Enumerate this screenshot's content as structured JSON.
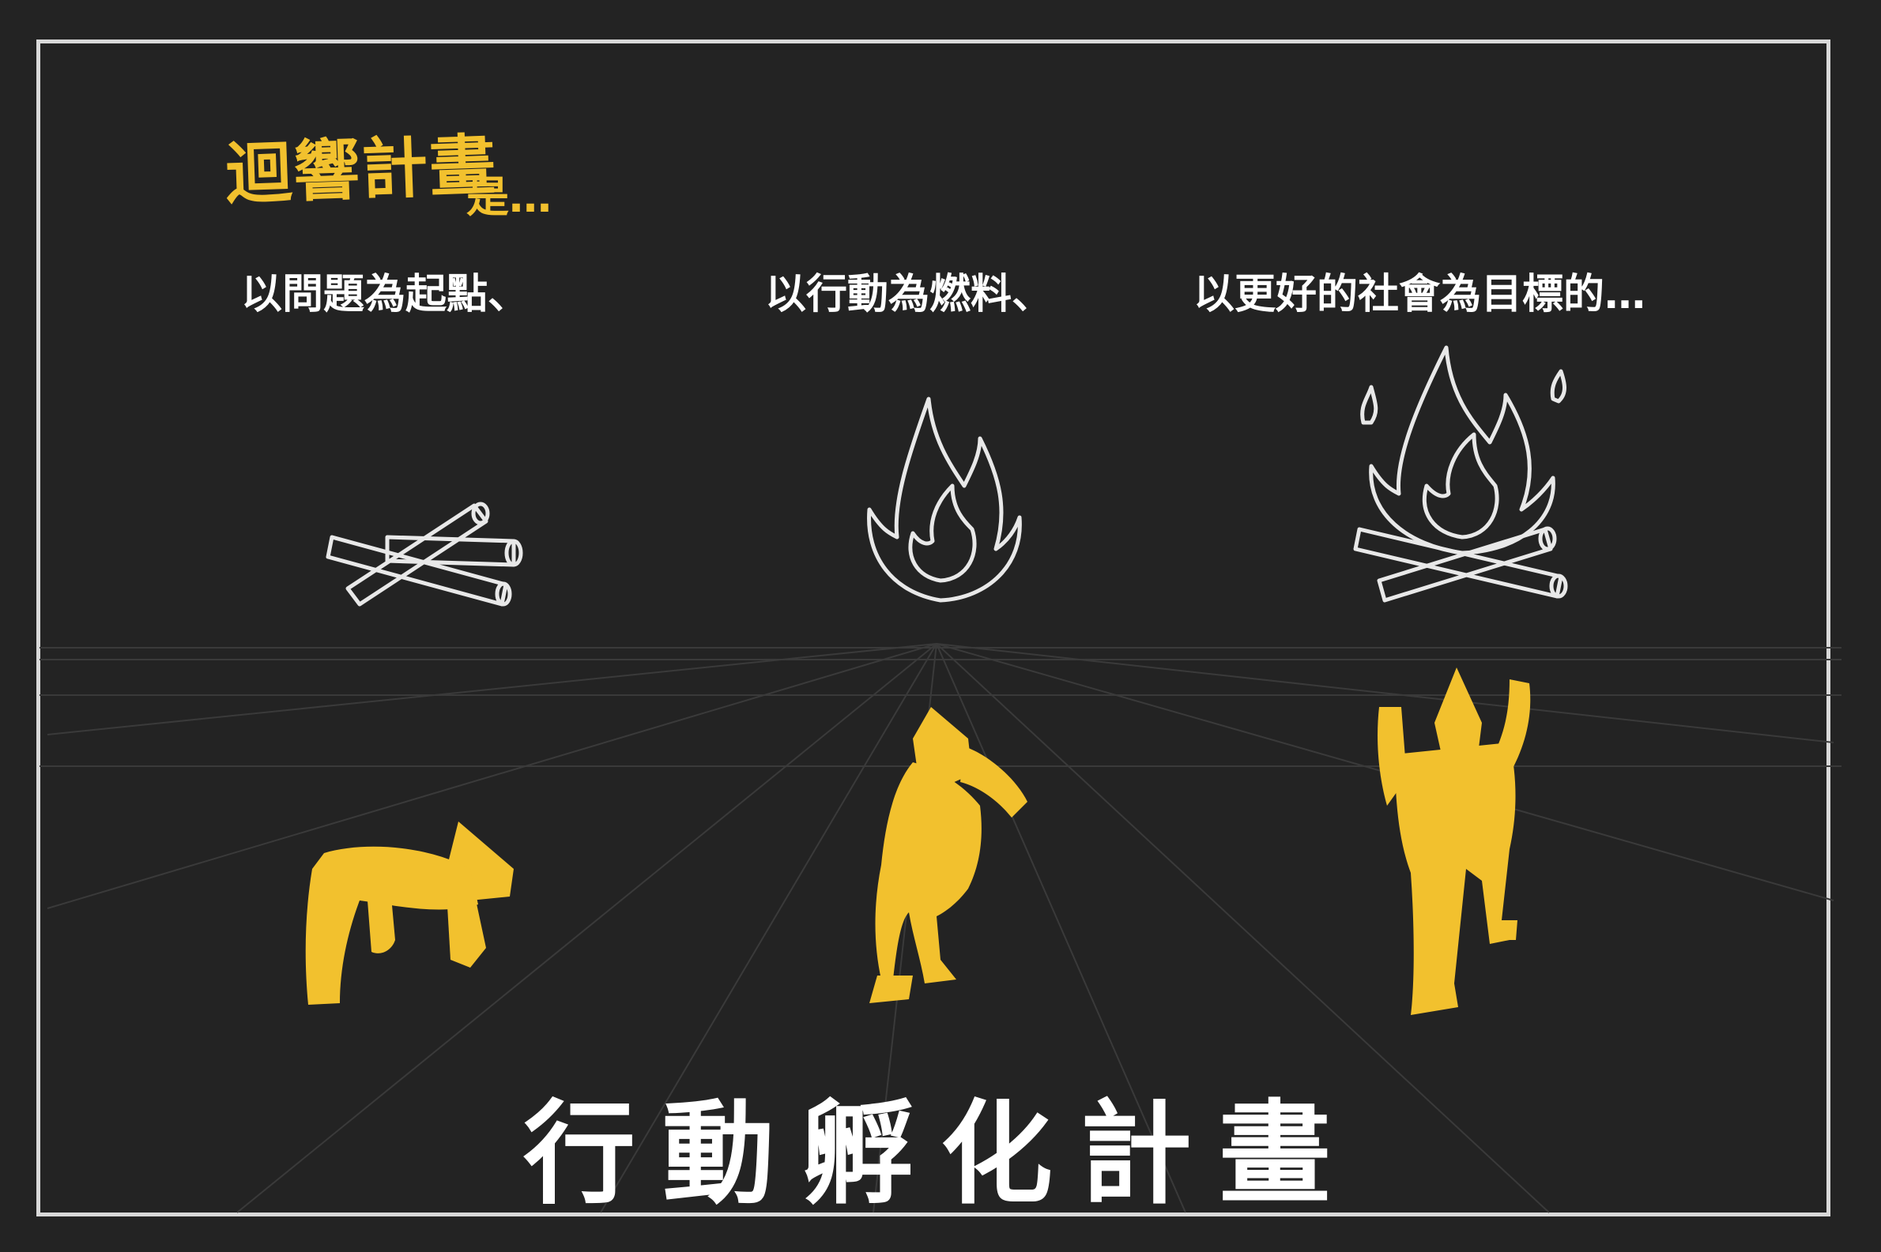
{
  "header": {
    "brand": "迴響計畫",
    "brand_suffix": "是…"
  },
  "captions": [
    "以問題為起點、",
    "以行動為燃料、",
    "以更好的社會為目標的…"
  ],
  "title": "行動孵化計畫",
  "colors": {
    "background": "#232323",
    "accent": "#f2c12e",
    "chalk": "#e8e8e8"
  }
}
